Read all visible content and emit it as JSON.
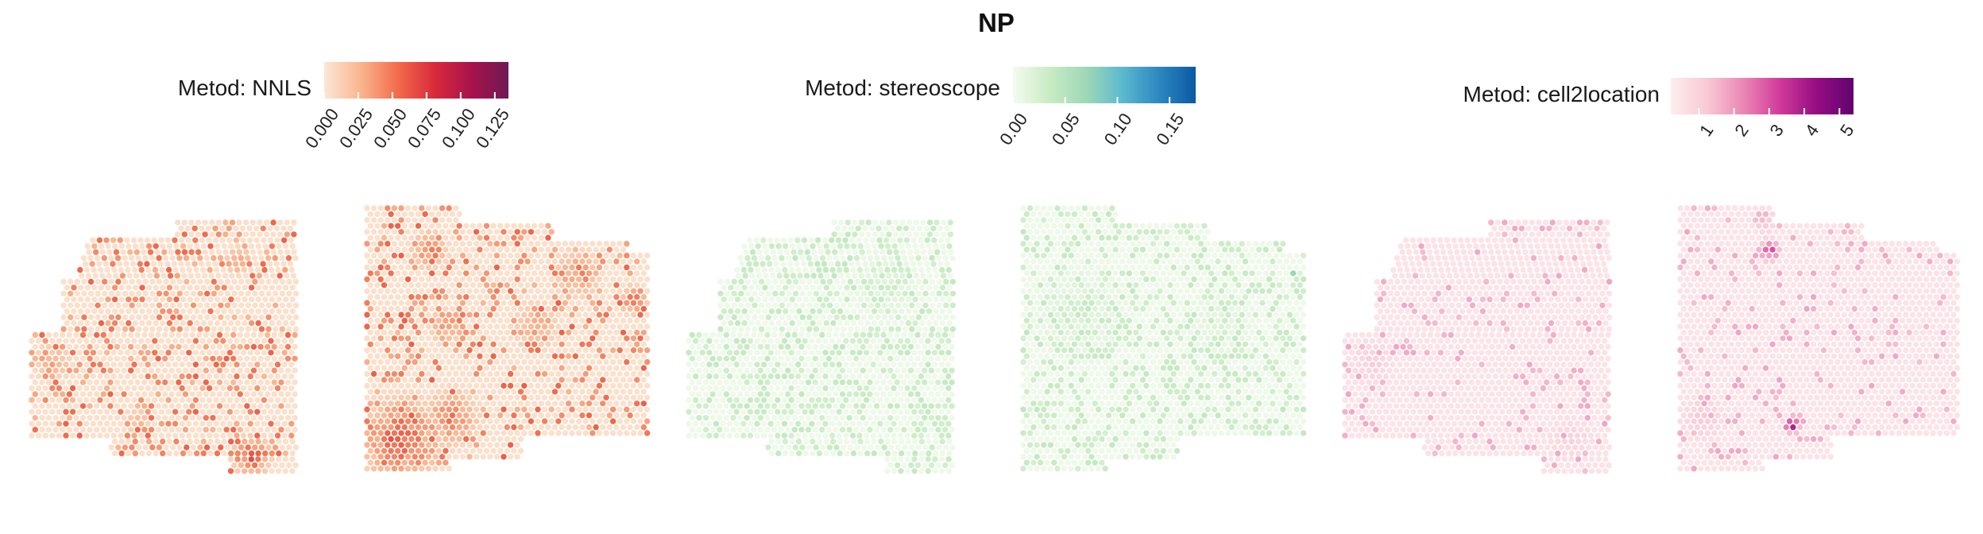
{
  "figure": {
    "title": "NP"
  },
  "chart_data": [
    {
      "type": "heatmap",
      "panel": "left",
      "legend_title": "Metod: NNLS",
      "legend_ticks": [
        "0.000",
        "0.025",
        "0.050",
        "0.075",
        "0.100",
        "0.125"
      ],
      "value_range": [
        0,
        0.135
      ],
      "colors": [
        "#fbe7d6",
        "#f9b58f",
        "#f26b4a",
        "#d92a3b",
        "#a8124b",
        "#6e1a55"
      ],
      "base_level": 0.004,
      "noise_levels": [
        0.02,
        0.055
      ],
      "noise_probability": 0.25,
      "hotspots": [
        {
          "section": 0,
          "fx": 0.83,
          "fy": 0.92,
          "r": 0.09,
          "peak": 0.08
        },
        {
          "section": 0,
          "fx": 0.08,
          "fy": 0.55,
          "r": 0.08,
          "peak": 0.04
        },
        {
          "section": 0,
          "fx": 0.4,
          "fy": 0.78,
          "r": 0.06,
          "peak": 0.035
        },
        {
          "section": 0,
          "fx": 0.78,
          "fy": 0.15,
          "r": 0.06,
          "peak": 0.05
        },
        {
          "section": 1,
          "fx": 0.12,
          "fy": 0.88,
          "r": 0.18,
          "peak": 0.08
        },
        {
          "section": 1,
          "fx": 0.3,
          "fy": 0.8,
          "r": 0.12,
          "peak": 0.06
        },
        {
          "section": 1,
          "fx": 0.28,
          "fy": 0.45,
          "r": 0.07,
          "peak": 0.05
        },
        {
          "section": 1,
          "fx": 0.22,
          "fy": 0.16,
          "r": 0.08,
          "peak": 0.06
        },
        {
          "section": 1,
          "fx": 0.75,
          "fy": 0.25,
          "r": 0.1,
          "peak": 0.05
        },
        {
          "section": 1,
          "fx": 0.95,
          "fy": 0.35,
          "r": 0.06,
          "peak": 0.07
        },
        {
          "section": 1,
          "fx": 0.6,
          "fy": 0.45,
          "r": 0.1,
          "peak": 0.04
        }
      ]
    },
    {
      "type": "heatmap",
      "panel": "center",
      "legend_title": "Metod: stereoscope",
      "legend_ticks": [
        "0.00",
        "0.05",
        "0.10",
        "0.15"
      ],
      "value_range": [
        0,
        0.175
      ],
      "colors": [
        "#f4fbef",
        "#c9ebc4",
        "#9fd8b6",
        "#5bb9cf",
        "#2c87c0",
        "#0a5aa3"
      ],
      "base_level": 0.005,
      "noise_levels": [
        0.02,
        0.035
      ],
      "noise_probability": 0.35,
      "hotspots": [
        {
          "section": 0,
          "fx": 0.75,
          "fy": 0.25,
          "r": 0.15,
          "peak": 0.025
        },
        {
          "section": 1,
          "fx": 0.2,
          "fy": 0.4,
          "r": 0.2,
          "peak": 0.025
        },
        {
          "section": 1,
          "fx": 0.7,
          "fy": 0.45,
          "r": 0.15,
          "peak": 0.02
        },
        {
          "section": 1,
          "fx": 0.97,
          "fy": 0.25,
          "r": 0.02,
          "peak": 0.17
        },
        {
          "section": 1,
          "fx": 0.01,
          "fy": 0.77,
          "r": 0.02,
          "peak": 0.09
        }
      ]
    },
    {
      "type": "heatmap",
      "panel": "right",
      "legend_title": "Metod: cell2location",
      "legend_ticks": [
        "1",
        "2",
        "3",
        "4",
        "5"
      ],
      "value_range": [
        0.2,
        5.4
      ],
      "colors": [
        "#fdeeee",
        "#f8c9d4",
        "#eb86b4",
        "#d0399a",
        "#960c82",
        "#60046e"
      ],
      "base_level": 0.5,
      "noise_levels": [
        0.9,
        1.3
      ],
      "noise_probability": 0.12,
      "hotspots": [
        {
          "section": 1,
          "fx": 0.32,
          "fy": 0.16,
          "r": 0.05,
          "peak": 4.2
        },
        {
          "section": 1,
          "fx": 0.4,
          "fy": 0.83,
          "r": 0.04,
          "peak": 5.0
        },
        {
          "section": 1,
          "fx": 0.3,
          "fy": 0.05,
          "r": 0.05,
          "peak": 2.0
        },
        {
          "section": 1,
          "fx": 0.08,
          "fy": 0.8,
          "r": 0.1,
          "peak": 1.4
        },
        {
          "section": 0,
          "fx": 0.1,
          "fy": 0.55,
          "r": 0.1,
          "peak": 1.3
        },
        {
          "section": 0,
          "fx": 0.85,
          "fy": 0.85,
          "r": 0.1,
          "peak": 1.2
        }
      ]
    }
  ]
}
